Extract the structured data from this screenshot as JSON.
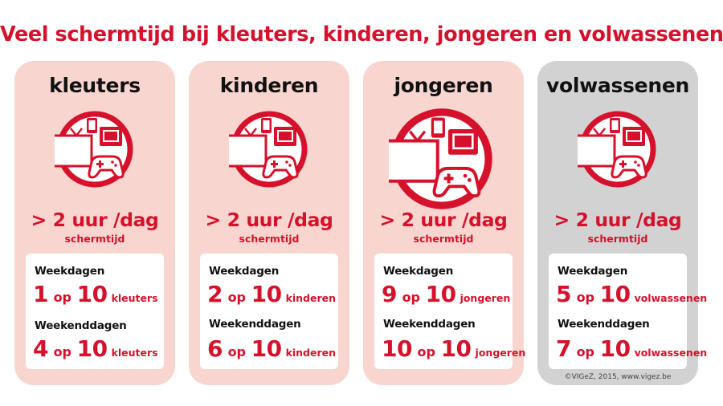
{
  "title": "Veel schermtijd bij kleuters, kinderen, jongeren en volwassenen",
  "colors": {
    "accent": "#d6112b",
    "card_pink": "#f8d6cf",
    "card_grey": "#d2d2d3"
  },
  "cards": [
    {
      "heading": "kleuters",
      "icon": "screens-icon",
      "hours": "> 2 uur /dag",
      "hours_sub": "schermtijd",
      "weekdays_label": "Weekdagen",
      "weekdays": {
        "a": "1",
        "op": "op",
        "b": "10",
        "group": "kleuters"
      },
      "weekend_label": "Weekenddagen",
      "weekend": {
        "a": "4",
        "op": "op",
        "b": "10",
        "group": "kleuters"
      }
    },
    {
      "heading": "kinderen",
      "icon": "screens-icon",
      "hours": "> 2 uur /dag",
      "hours_sub": "schermtijd",
      "weekdays_label": "Weekdagen",
      "weekdays": {
        "a": "2",
        "op": "op",
        "b": "10",
        "group": "kinderen"
      },
      "weekend_label": "Weekenddagen",
      "weekend": {
        "a": "6",
        "op": "op",
        "b": "10",
        "group": "kinderen"
      }
    },
    {
      "heading": "jongeren",
      "icon": "screens-icon",
      "hours": "> 2 uur /dag",
      "hours_sub": "schermtijd",
      "weekdays_label": "Weekdagen",
      "weekdays": {
        "a": "9",
        "op": "op",
        "b": "10",
        "group": "jongeren"
      },
      "weekend_label": "Weekenddagen",
      "weekend": {
        "a": "10",
        "op": "op",
        "b": "10",
        "group": "jongeren"
      }
    },
    {
      "heading": "volwassenen",
      "icon": "screens-icon",
      "hours": "> 2 uur /dag",
      "hours_sub": "schermtijd",
      "weekdays_label": "Weekdagen",
      "weekdays": {
        "a": "5",
        "op": "op",
        "b": "10",
        "group": "volwassenen"
      },
      "weekend_label": "Weekenddagen",
      "weekend": {
        "a": "7",
        "op": "op",
        "b": "10",
        "group": "volwassenen"
      }
    }
  ],
  "credit": "©VIGeZ, 2015, www.vigez.be"
}
